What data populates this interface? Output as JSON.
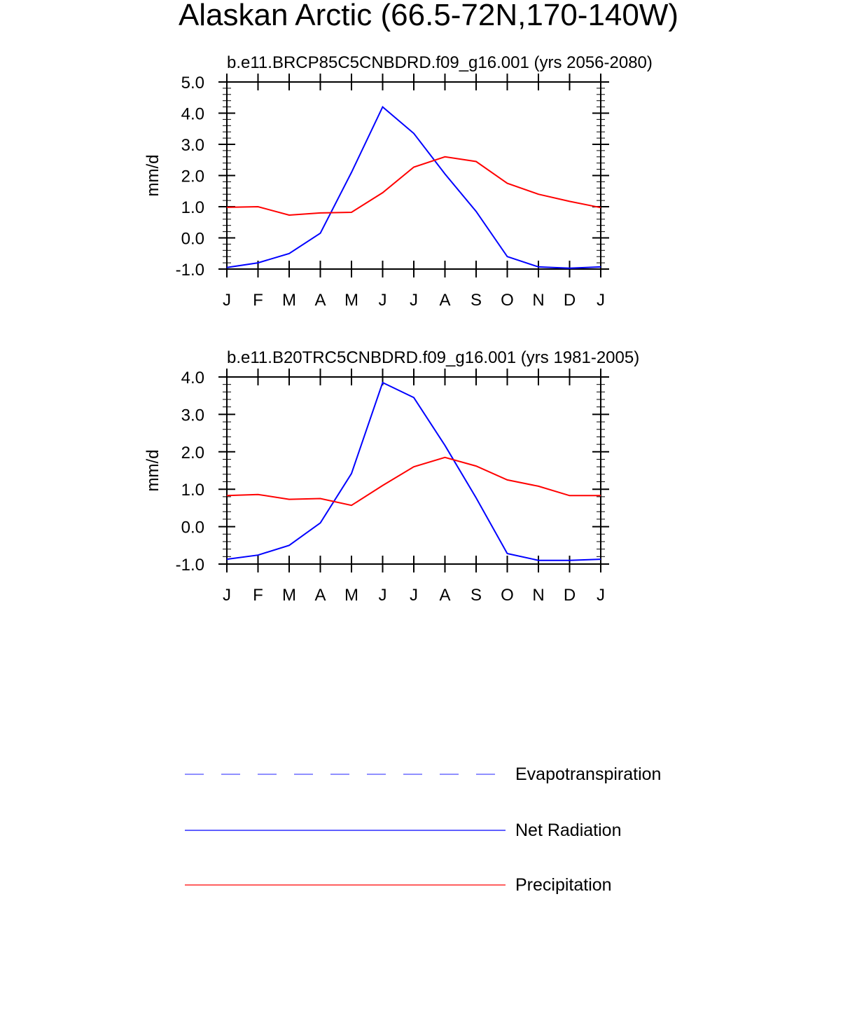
{
  "figure": {
    "title": "Alaskan Arctic (66.5-72N,170-140W)"
  },
  "legend": {
    "placement": "bottom",
    "entries": [
      {
        "label": "Evapotranspiration",
        "color": "#4d4dff",
        "style": "dashed"
      },
      {
        "label": "Net Radiation",
        "color": "#0000ff",
        "style": "solid"
      },
      {
        "label": "Precipitation",
        "color": "#ff0000",
        "style": "solid"
      }
    ]
  },
  "chart_data": [
    {
      "type": "line",
      "title": "b.e11.BRCP85C5CNBDRD.f09_g16.001 (yrs 2056-2080)",
      "xlabel": "",
      "ylabel": "mm/d",
      "categories": [
        "J",
        "F",
        "M",
        "A",
        "M",
        "J",
        "J",
        "A",
        "S",
        "O",
        "N",
        "D",
        "J"
      ],
      "ylim": [
        -1.0,
        5.0
      ],
      "yticks": [
        -1.0,
        0.0,
        1.0,
        2.0,
        3.0,
        4.0,
        5.0
      ],
      "ytick_labels": [
        "-1.0",
        "0.0",
        "1.0",
        "2.0",
        "3.0",
        "4.0",
        "5.0"
      ],
      "series": [
        {
          "name": "Net Radiation",
          "color": "#0000ff",
          "values": [
            -0.95,
            -0.8,
            -0.5,
            0.15,
            2.1,
            4.2,
            3.35,
            2.05,
            0.85,
            -0.6,
            -0.93,
            -0.97,
            -0.93
          ]
        },
        {
          "name": "Precipitation",
          "color": "#ff0000",
          "values": [
            0.98,
            1.0,
            0.73,
            0.8,
            0.82,
            1.45,
            2.27,
            2.6,
            2.45,
            1.75,
            1.4,
            1.17,
            0.97
          ]
        }
      ]
    },
    {
      "type": "line",
      "title": "b.e11.B20TRC5CNBDRD.f09_g16.001 (yrs 1981-2005)",
      "xlabel": "",
      "ylabel": "mm/d",
      "categories": [
        "J",
        "F",
        "M",
        "A",
        "M",
        "J",
        "J",
        "A",
        "S",
        "O",
        "N",
        "D",
        "J"
      ],
      "ylim": [
        -1.0,
        4.0
      ],
      "yticks": [
        -1.0,
        0.0,
        1.0,
        2.0,
        3.0,
        4.0
      ],
      "ytick_labels": [
        "-1.0",
        "0.0",
        "1.0",
        "2.0",
        "3.0",
        "4.0"
      ],
      "series": [
        {
          "name": "Net Radiation",
          "color": "#0000ff",
          "values": [
            -0.87,
            -0.76,
            -0.5,
            0.1,
            1.42,
            3.85,
            3.45,
            2.17,
            0.77,
            -0.72,
            -0.9,
            -0.9,
            -0.87
          ]
        },
        {
          "name": "Precipitation",
          "color": "#ff0000",
          "values": [
            0.83,
            0.86,
            0.73,
            0.75,
            0.57,
            1.1,
            1.6,
            1.85,
            1.62,
            1.25,
            1.08,
            0.83,
            0.83
          ]
        }
      ]
    }
  ]
}
